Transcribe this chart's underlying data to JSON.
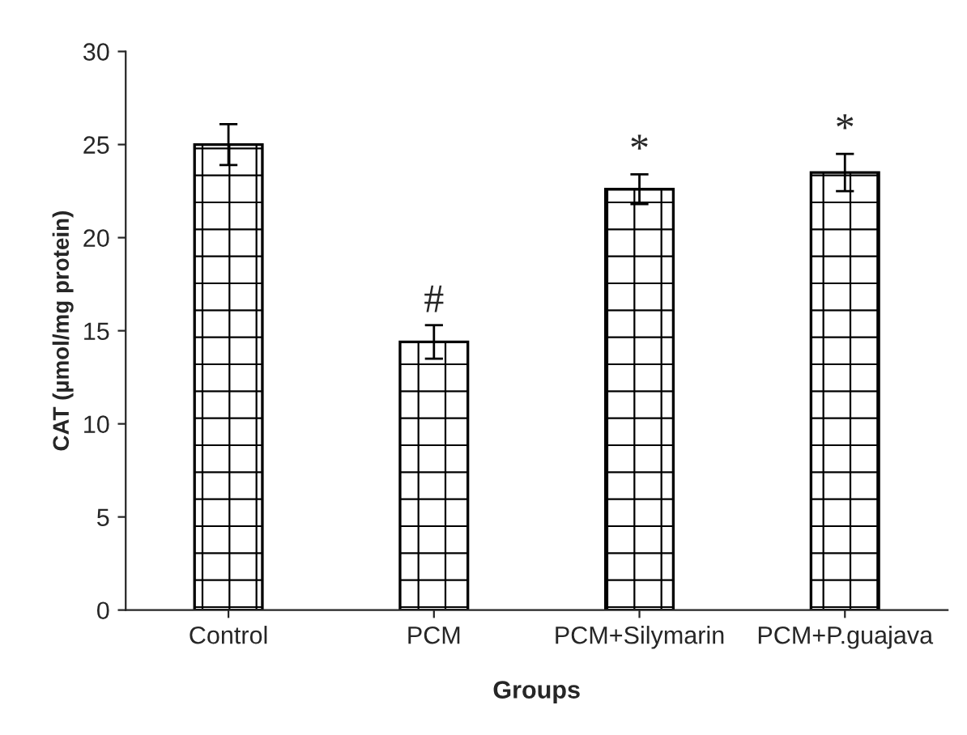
{
  "chart_data": {
    "type": "bar",
    "xlabel": "Groups",
    "ylabel": "CAT (µmol/mg protein)",
    "categories": [
      "Control",
      "PCM",
      "PCM+Silymarin",
      "PCM+P.guajava"
    ],
    "values": [
      25,
      14.4,
      22.6,
      23.5
    ],
    "errors": [
      1.1,
      0.9,
      0.8,
      1.0
    ],
    "color": "#000000",
    "ylim": [
      0,
      30
    ],
    "yticks": [
      0,
      5,
      10,
      15,
      20,
      25,
      30
    ],
    "grid": false,
    "legend": false,
    "annotations": [
      {
        "text": "#",
        "x": "PCM",
        "y": 15.3
      },
      {
        "text": "*",
        "x": "PCM+Silymarin",
        "y": 23.4
      },
      {
        "text": "*",
        "x": "PCM+P.guajava",
        "y": 24.5
      }
    ]
  }
}
